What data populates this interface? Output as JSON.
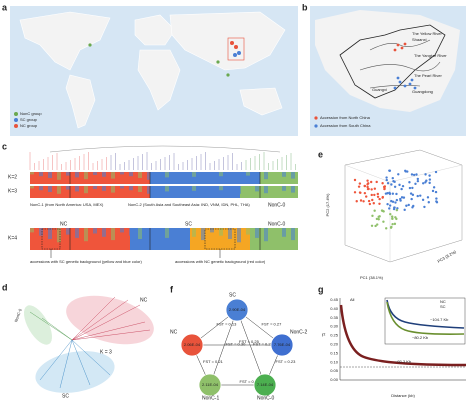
{
  "labels": [
    "a",
    "b",
    "c",
    "d",
    "e",
    "f",
    "g"
  ],
  "a": {
    "legend": [
      "NonC group",
      "SC group",
      "NC group"
    ]
  },
  "b": {
    "rivers": [
      "The Yellow River",
      "The Yangtze River",
      "The Pearl River"
    ],
    "places": [
      "Shaanxi",
      "Guangxi",
      "Guangdong"
    ],
    "legend": [
      "Accession from North China",
      "Accession from South China"
    ]
  },
  "c": {
    "k": [
      "K=2",
      "K=3",
      "K=4"
    ],
    "groups": [
      "NonC-1 (from North America: USA, MEX)",
      "NonC-2 (South Asia and Southeast Asia: IND, VNM, IDN, PHL, THA)",
      "NonC-0"
    ],
    "k4_groups": [
      "NC",
      "SC",
      "NonC-0"
    ],
    "notes": [
      "accessions with SC genetic background (yellow and blue color)",
      "accessions with NC genetic background (red color)"
    ]
  },
  "d": {
    "clades": [
      "NC",
      "NonC-0",
      "SC"
    ],
    "k": "K = 3"
  },
  "e": {
    "axes": [
      "PC2 (17.4%)",
      "PC1 (38.1%)",
      "PC3 (8.2%)"
    ]
  },
  "f": {
    "nodes": [
      {
        "name": "SC",
        "pi": "2.90E-04"
      },
      {
        "name": "NC",
        "pi": "2.06E-04"
      },
      {
        "name": "NonC-2",
        "pi": "7.76E-04"
      },
      {
        "name": "NonC-1",
        "pi": "2.11E-04"
      },
      {
        "name": "NonC-0",
        "pi": "7.14E-04"
      }
    ],
    "fst": [
      "FST = 0.13",
      "FST = 0.27",
      "FST = 0.21",
      "FST = 0.23",
      "FST = 0.34",
      "FST = 0.30",
      "FST = 0.22",
      "FST = 0.25"
    ]
  },
  "g": {
    "ylabel": "r²",
    "xlabel": "Distance (kb)",
    "legend": [
      "All",
      "NC",
      "SC"
    ],
    "yticks": [
      "0.45",
      "0.40",
      "0.35",
      "0.30",
      "0.25",
      "0.20",
      "0.15",
      "0.10",
      "0.05",
      "0.00"
    ],
    "notes": [
      "~104.7 Kb",
      "~80.2 Kb",
      "~92.3 Kb"
    ]
  }
}
